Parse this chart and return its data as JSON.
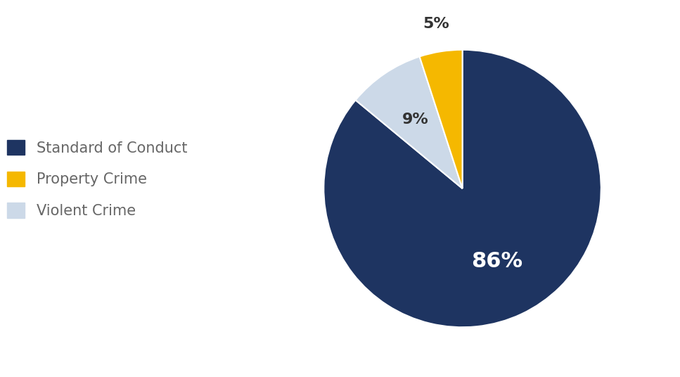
{
  "labels": [
    "Standard of Conduct",
    "Violent Crime",
    "Property Crime"
  ],
  "values": [
    86,
    9,
    5
  ],
  "colors": [
    "#1e3461",
    "#ccd9e8",
    "#f5b800"
  ],
  "pct_labels": [
    "86%",
    "9%",
    "5%"
  ],
  "pct_label_colors": [
    "white",
    "#333333",
    "#333333"
  ],
  "legend_labels": [
    "Standard of Conduct",
    "Property Crime",
    "Violent Crime"
  ],
  "legend_colors": [
    "#1e3461",
    "#f5b800",
    "#ccd9e8"
  ],
  "legend_text_color": "#666666",
  "background_color": "#ffffff",
  "startangle": 90,
  "figsize": [
    9.67,
    5.36
  ]
}
